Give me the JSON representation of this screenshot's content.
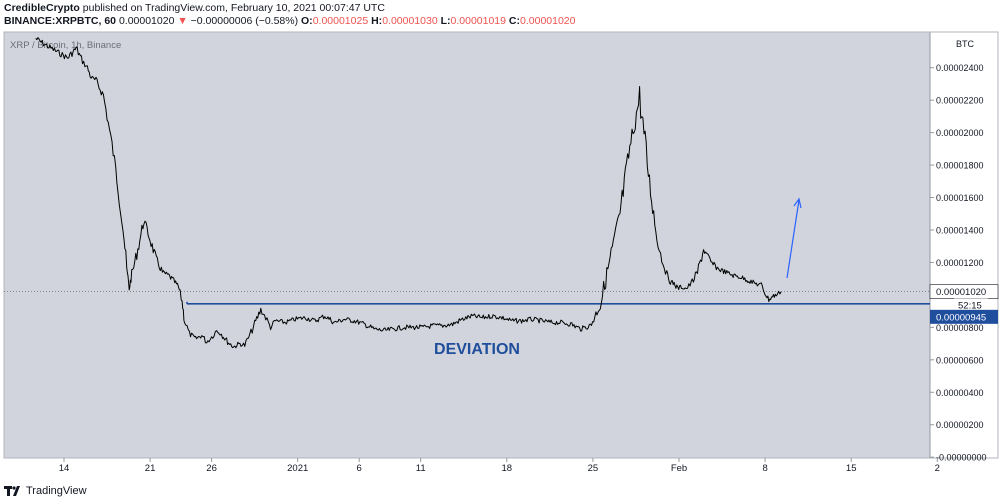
{
  "header": {
    "author": "CredibleCrypto",
    "published": "published on TradingView.com, February 10, 2021 00:07:47 UTC",
    "symbol": "BINANCE:XRPBTC, 60",
    "last_value": "0.00001020",
    "change": "−0.00000006 (−0.58%)",
    "o_label": "O:",
    "o_value": "0.00001025",
    "h_label": "H:",
    "h_value": "0.00001030",
    "l_label": "L:",
    "l_value": "0.00001019",
    "c_label": "C:",
    "c_value": "0.00001020"
  },
  "chart_data": {
    "type": "line",
    "series_label": "XRP / Bitcoin, 1h, Binance",
    "unit": "BTC",
    "annotation": "DEVIATION",
    "ylim": [
      -5e-08,
      2.62e-05
    ],
    "y_ticks": [
      "0.00002400",
      "0.00002200",
      "0.00002000",
      "0.00001800",
      "0.00001600",
      "0.00001400",
      "0.00001200",
      "0.00000800",
      "0.00000600",
      "0.00000400",
      "0.00000200",
      "-0.00000000"
    ],
    "y_tick_values": [
      2.4e-05,
      2.2e-05,
      2e-05,
      1.8e-05,
      1.6e-05,
      1.4e-05,
      1.2e-05,
      8e-06,
      6e-06,
      4e-06,
      2e-06,
      0
    ],
    "x_ticks": [
      "14",
      "21",
      "26",
      "2021",
      "6",
      "11",
      "18",
      "25",
      "Feb",
      "8",
      "15",
      "2"
    ],
    "x_tick_index": [
      0,
      7,
      12,
      19,
      24,
      29,
      36,
      43,
      50,
      57,
      64,
      71
    ],
    "price_label": "0.00001020",
    "price_value": 1.02e-05,
    "countdown_label": "52:15",
    "level_label": "0.00000945",
    "level_value": 9.45e-06,
    "x": [
      -2.3,
      -1.5,
      -0.6,
      0.3,
      1.0,
      1.5,
      1.9,
      2.2,
      2.6,
      3.2,
      3.6,
      4.0,
      4.4,
      4.8,
      5.1,
      5.3,
      5.5,
      6.0,
      6.5,
      7.0,
      7.5,
      8.0,
      8.5,
      9.0,
      9.3,
      9.6,
      9.8,
      10.2,
      10.7,
      11.2,
      11.6,
      12.0,
      12.4,
      12.8,
      13.3,
      13.8,
      14.3,
      14.7,
      15.1,
      15.5,
      16.0,
      16.4,
      16.8,
      17.2,
      18.0,
      18.8,
      19.6,
      20.4,
      21.2,
      22.0,
      22.8,
      23.6,
      24.4,
      25.2,
      26.0,
      26.8,
      27.6,
      28.4,
      29.2,
      30.0,
      30.8,
      31.6,
      32.4,
      33.2,
      34.0,
      34.8,
      35.6,
      36.4,
      37.2,
      38.0,
      38.8,
      39.6,
      40.4,
      41.2,
      42.0,
      42.8,
      43.6,
      44.4,
      45.2,
      46.0,
      46.8,
      47.6,
      48.2,
      48.6,
      49.0,
      49.3,
      49.6,
      49.9,
      50.2,
      50.6,
      51.0,
      51.5,
      52.0,
      52.6,
      53.2,
      53.8,
      54.4,
      55.0,
      55.6,
      56.2,
      56.7,
      57.0,
      57.3,
      57.6,
      57.9,
      58.3
    ],
    "values": [
      2.58e-05,
      2.54e-05,
      2.5e-05,
      2.46e-05,
      2.52e-05,
      2.44e-05,
      2.4e-05,
      2.34e-05,
      2.32e-05,
      2.23e-05,
      2.06e-05,
      1.88e-05,
      1.66e-05,
      1.42e-05,
      1.16e-05,
      1.04e-05,
      1.12e-05,
      1.28e-05,
      1.46e-05,
      1.34e-05,
      1.22e-05,
      1.14e-05,
      1.12e-05,
      1.08e-05,
      1.05e-05,
      9.6e-06,
      8.4e-06,
      7.6e-06,
      7.3e-06,
      7.5e-06,
      7.1e-06,
      7.4e-06,
      7.8e-06,
      7.6e-06,
      7.1e-06,
      6.8e-06,
      7e-06,
      6.9e-06,
      7.5e-06,
      8.2e-06,
      9.1e-06,
      8.6e-06,
      8e-06,
      8.4e-06,
      8.3e-06,
      8.5e-06,
      8.6e-06,
      8.4e-06,
      8.7e-06,
      8.3e-06,
      8.5e-06,
      8.4e-06,
      8.2e-06,
      7.9e-06,
      7.8e-06,
      7.9e-06,
      8e-06,
      8e-06,
      8e-06,
      8.1e-06,
      8.1e-06,
      8.2e-06,
      8.5e-06,
      8.7e-06,
      8.6e-06,
      8.7e-06,
      8.6e-06,
      8.4e-06,
      8.4e-06,
      8.5e-06,
      8.4e-06,
      8.3e-06,
      8.3e-06,
      8.2e-06,
      7.9e-06,
      8.1e-06,
      9.4e-06,
      1.22e-05,
      1.5e-05,
      1.9e-05,
      2.22e-05,
      1.7e-05,
      1.35e-05,
      1.22e-05,
      1.13e-05,
      1.08e-05,
      1.07e-05,
      1.04e-05,
      1.05e-05,
      1.04e-05,
      1.07e-05,
      1.14e-05,
      1.28e-05,
      1.2e-05,
      1.16e-05,
      1.14e-05,
      1.12e-05,
      1.11e-05,
      1.09e-05,
      1.07e-05,
      1.06e-05,
      1.01e-05,
      9.7e-06,
      9.9e-06,
      1e-05,
      1.02e-05
    ],
    "arrow_color": "#2962ff",
    "level_color": "#1f4e9c",
    "annotation_color": "#1f4e9c",
    "plot_bg": "#d1d4dc",
    "line_color": "#000000"
  },
  "footer": {
    "brand": "TradingView"
  }
}
